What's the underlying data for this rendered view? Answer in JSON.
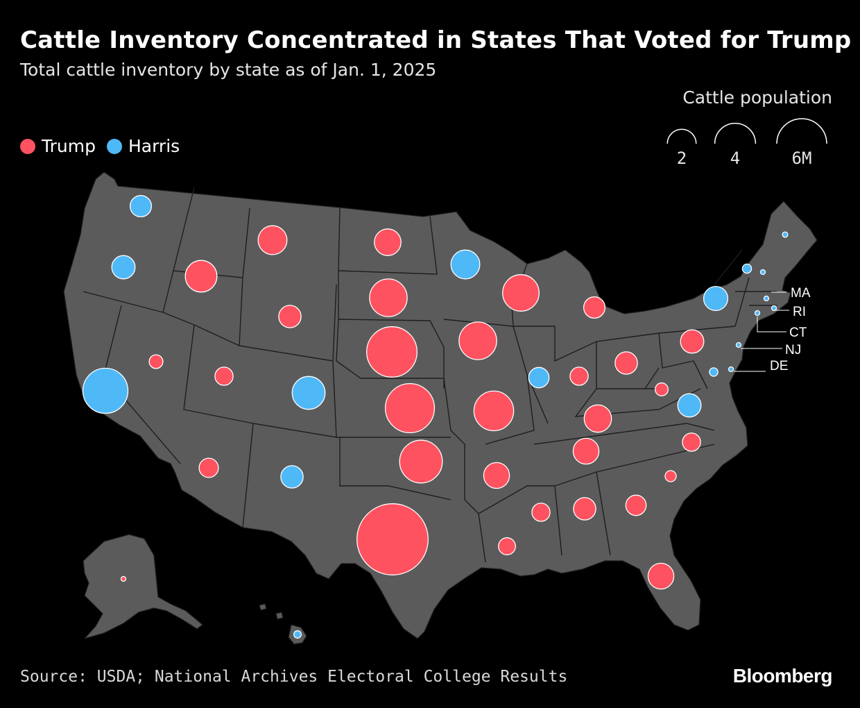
{
  "title": "Cattle Inventory Concentrated in States That Voted for Trump",
  "subtitle": "Total cattle inventory by state as of Jan. 1, 2025",
  "legend": {
    "trump_label": "Trump",
    "harris_label": "Harris",
    "trump_color": "#ff5260",
    "harris_color": "#4fb8f7"
  },
  "size_legend": {
    "title": "Cattle population",
    "items": [
      {
        "value": 2,
        "label": "2"
      },
      {
        "value": 4,
        "label": "4"
      },
      {
        "value": 6,
        "label": "6M"
      }
    ]
  },
  "colors": {
    "background": "#000000",
    "land": "#5b5b5b",
    "state_border": "#1e1e1e"
  },
  "callout_labels": [
    "MA",
    "RI",
    "CT",
    "NJ",
    "DE"
  ],
  "source": "Source: USDA; National Archives Electoral College Results",
  "brand": "Bloomberg",
  "chart_data": {
    "type": "proportional-symbol-map",
    "unit": "million head of cattle",
    "states": [
      {
        "state": "TX",
        "cattle_m": 12.2,
        "winner": "Trump"
      },
      {
        "state": "NE",
        "cattle_m": 6.1,
        "winner": "Trump"
      },
      {
        "state": "KS",
        "cattle_m": 5.8,
        "winner": "Trump"
      },
      {
        "state": "CA",
        "cattle_m": 4.9,
        "winner": "Harris"
      },
      {
        "state": "OK",
        "cattle_m": 4.4,
        "winner": "Trump"
      },
      {
        "state": "MO",
        "cattle_m": 3.8,
        "winner": "Trump"
      },
      {
        "state": "IA",
        "cattle_m": 3.4,
        "winner": "Trump"
      },
      {
        "state": "SD",
        "cattle_m": 3.4,
        "winner": "Trump"
      },
      {
        "state": "WI",
        "cattle_m": 3.2,
        "winner": "Trump"
      },
      {
        "state": "CO",
        "cattle_m": 2.6,
        "winner": "Harris"
      },
      {
        "state": "MT",
        "cattle_m": 2.0,
        "winner": "Trump"
      },
      {
        "state": "ID",
        "cattle_m": 2.4,
        "winner": "Trump"
      },
      {
        "state": "MN",
        "cattle_m": 2.0,
        "winner": "Harris"
      },
      {
        "state": "KY",
        "cattle_m": 1.8,
        "winner": "Trump"
      },
      {
        "state": "ND",
        "cattle_m": 1.7,
        "winner": "Trump"
      },
      {
        "state": "AR",
        "cattle_m": 1.6,
        "winner": "Trump"
      },
      {
        "state": "TN",
        "cattle_m": 1.6,
        "winner": "Trump"
      },
      {
        "state": "FL",
        "cattle_m": 1.6,
        "winner": "Trump"
      },
      {
        "state": "NY",
        "cattle_m": 1.4,
        "winner": "Harris"
      },
      {
        "state": "PA",
        "cattle_m": 1.3,
        "winner": "Trump"
      },
      {
        "state": "OR",
        "cattle_m": 1.3,
        "winner": "Harris"
      },
      {
        "state": "VA",
        "cattle_m": 1.3,
        "winner": "Harris"
      },
      {
        "state": "NM",
        "cattle_m": 1.2,
        "winner": "Harris"
      },
      {
        "state": "AL",
        "cattle_m": 1.2,
        "winner": "Trump"
      },
      {
        "state": "MI",
        "cattle_m": 1.1,
        "winner": "Trump"
      },
      {
        "state": "OH",
        "cattle_m": 1.2,
        "winner": "Trump"
      },
      {
        "state": "GA",
        "cattle_m": 1.0,
        "winner": "Trump"
      },
      {
        "state": "WA",
        "cattle_m": 1.1,
        "winner": "Harris"
      },
      {
        "state": "IL",
        "cattle_m": 1.0,
        "winner": "Harris"
      },
      {
        "state": "WY",
        "cattle_m": 1.2,
        "winner": "Trump"
      },
      {
        "state": "AZ",
        "cattle_m": 0.9,
        "winner": "Trump"
      },
      {
        "state": "MS",
        "cattle_m": 0.8,
        "winner": "Trump"
      },
      {
        "state": "LA",
        "cattle_m": 0.7,
        "winner": "Trump"
      },
      {
        "state": "IN",
        "cattle_m": 0.8,
        "winner": "Trump"
      },
      {
        "state": "UT",
        "cattle_m": 0.8,
        "winner": "Trump"
      },
      {
        "state": "NC",
        "cattle_m": 0.8,
        "winner": "Trump"
      },
      {
        "state": "NV",
        "cattle_m": 0.45,
        "winner": "Trump"
      },
      {
        "state": "WV",
        "cattle_m": 0.4,
        "winner": "Trump"
      },
      {
        "state": "SC",
        "cattle_m": 0.3,
        "winner": "Trump"
      },
      {
        "state": "MD",
        "cattle_m": 0.17,
        "winner": "Harris"
      },
      {
        "state": "VT",
        "cattle_m": 0.2,
        "winner": "Harris"
      },
      {
        "state": "HI",
        "cattle_m": 0.13,
        "winner": "Harris"
      },
      {
        "state": "ME",
        "cattle_m": 0.07,
        "winner": "Harris"
      },
      {
        "state": "NH",
        "cattle_m": 0.03,
        "winner": "Harris"
      },
      {
        "state": "MA",
        "cattle_m": 0.03,
        "winner": "Harris"
      },
      {
        "state": "CT",
        "cattle_m": 0.04,
        "winner": "Harris"
      },
      {
        "state": "NJ",
        "cattle_m": 0.03,
        "winner": "Harris"
      },
      {
        "state": "DE",
        "cattle_m": 0.01,
        "winner": "Harris"
      },
      {
        "state": "RI",
        "cattle_m": 0.004,
        "winner": "Harris"
      },
      {
        "state": "AK",
        "cattle_m": 0.02,
        "winner": "Trump"
      }
    ]
  }
}
